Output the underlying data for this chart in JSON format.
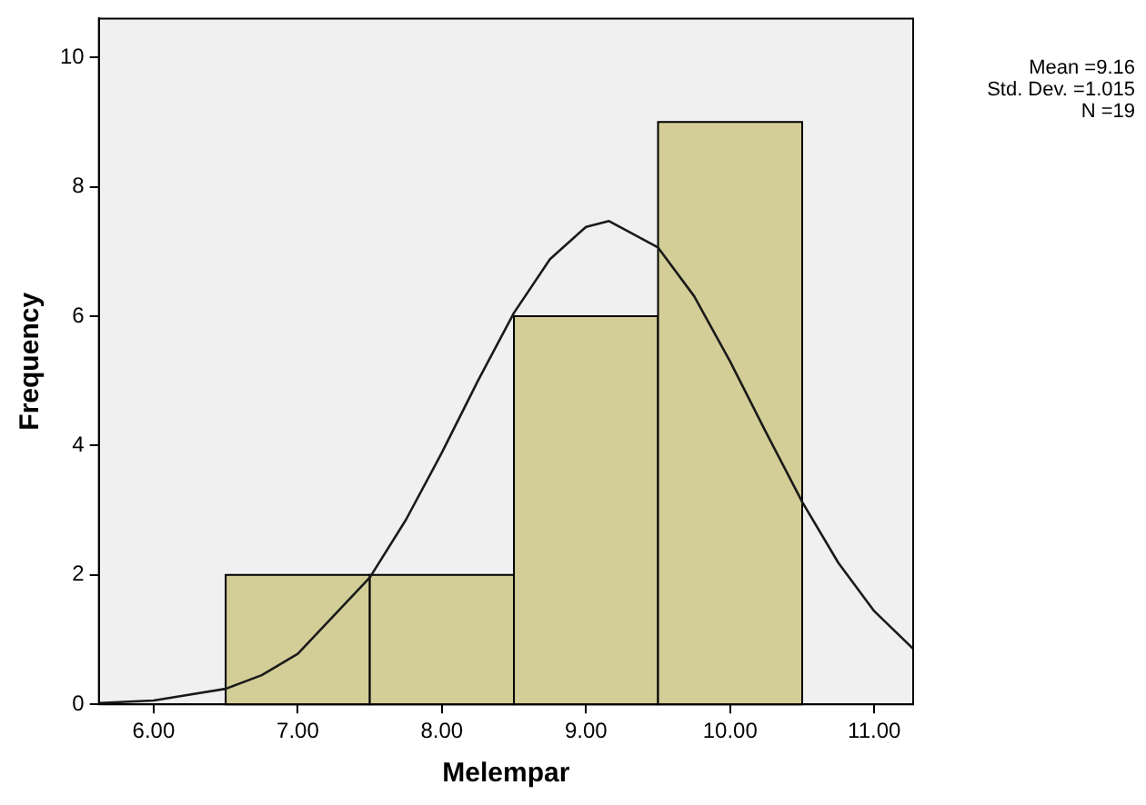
{
  "chart_data": {
    "type": "histogram",
    "xlabel": "Melempar",
    "ylabel": "Frequency",
    "bins": [
      6.5,
      7.5,
      8.5,
      9.5,
      10.5
    ],
    "values": [
      2,
      2,
      6,
      9
    ],
    "color": "#d3ce97",
    "series": [
      {
        "type": "line",
        "color": "#1a1a1a",
        "x": [
          5.62,
          6.0,
          6.5,
          6.75,
          7.0,
          7.5,
          7.75,
          8.0,
          8.25,
          8.5,
          8.75,
          9.0,
          9.16,
          9.5,
          9.75,
          10.0,
          10.25,
          10.5,
          10.75,
          11.0,
          11.27
        ],
        "values": [
          0.02,
          0.06,
          0.24,
          0.45,
          0.78,
          1.96,
          2.85,
          3.89,
          5.0,
          6.05,
          6.88,
          7.38,
          7.47,
          7.06,
          6.31,
          5.3,
          4.2,
          3.13,
          2.19,
          1.44,
          0.86
        ]
      }
    ],
    "xlim": [
      5.62,
      11.27
    ],
    "xticks": [
      {
        "value": 6,
        "label": "6.00"
      },
      {
        "value": 7,
        "label": "7.00"
      },
      {
        "value": 8,
        "label": "8.00"
      },
      {
        "value": 9,
        "label": "9.00"
      },
      {
        "value": 10,
        "label": "10.00"
      },
      {
        "value": 11,
        "label": "11.00"
      }
    ],
    "ylim": [
      0,
      10.6
    ],
    "yticks": [
      0,
      2,
      4,
      6,
      8,
      10
    ],
    "grid": false,
    "legend": false,
    "marker": "none",
    "line_style": "solid",
    "annotations": [
      "Mean =9.16",
      "Std. Dev. =1.015",
      "N =19"
    ]
  }
}
